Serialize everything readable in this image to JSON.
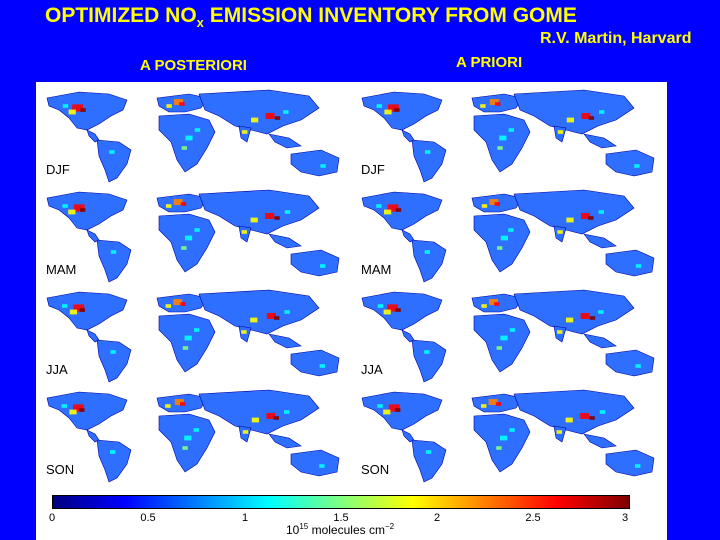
{
  "title": {
    "main": "OPTIMIZED NO",
    "sub": "x",
    "rest": " EMISSION INVENTORY FROM GOME"
  },
  "credit": "R.V. Martin, Harvard",
  "columns": {
    "left": "A POSTERIORI",
    "right": "A PRIORI"
  },
  "seasons": [
    "DJF",
    "MAM",
    "JJA",
    "SON"
  ],
  "colorbar": {
    "ticks": [
      "0",
      "0.5",
      "1",
      "1.5",
      "2",
      "2.5",
      "3"
    ],
    "unit_base": "10",
    "unit_exp": "15",
    "unit_text": " molecules cm",
    "unit_exp2": "−2",
    "range": [
      0,
      3
    ],
    "colors": [
      "#00007f",
      "#0000ff",
      "#007fff",
      "#00ffff",
      "#7fff7f",
      "#ffff00",
      "#ff7f00",
      "#ff0000",
      "#7f0000"
    ]
  },
  "colors": {
    "background": "#0000ff",
    "title": "#ffff00",
    "land_low": "#2f6fff",
    "ocean": "#ffffff"
  }
}
